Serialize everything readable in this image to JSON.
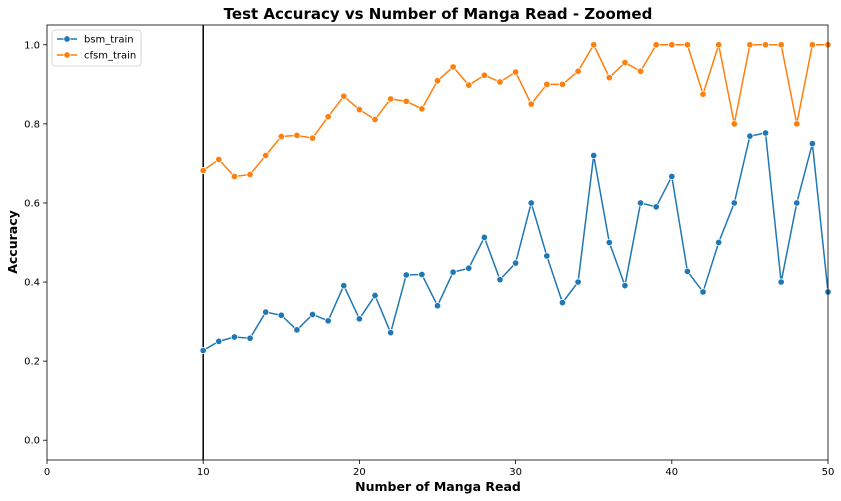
{
  "chart_data": {
    "type": "line",
    "title": "Test Accuracy vs Number of Manga Read - Zoomed",
    "xlabel": "Number of Manga Read",
    "ylabel": "Accuracy",
    "xlim": [
      0,
      50
    ],
    "ylim": [
      -0.05,
      1.05
    ],
    "xticks": [
      0,
      10,
      20,
      30,
      40,
      50
    ],
    "yticks": [
      0.0,
      0.2,
      0.4,
      0.6,
      0.8,
      1.0
    ],
    "xtick_labels": [
      "0",
      "10",
      "20",
      "30",
      "40",
      "50"
    ],
    "ytick_labels": [
      "0.0",
      "0.2",
      "0.4",
      "0.6",
      "0.8",
      "1.0"
    ],
    "vline_x": 10,
    "grid": false,
    "legend_position": "top-left",
    "x": [
      10,
      11,
      12,
      13,
      14,
      15,
      16,
      17,
      18,
      19,
      20,
      21,
      22,
      23,
      24,
      25,
      26,
      27,
      28,
      29,
      30,
      31,
      32,
      33,
      34,
      35,
      36,
      37,
      38,
      39,
      40,
      41,
      42,
      43,
      44,
      45,
      46,
      47,
      48,
      49,
      50
    ],
    "series": [
      {
        "name": "bsm_train",
        "color": "#1f77b4",
        "marker": "circle",
        "values": [
          0.227,
          0.25,
          0.261,
          0.258,
          0.324,
          0.316,
          0.279,
          0.318,
          0.302,
          0.391,
          0.307,
          0.366,
          0.272,
          0.418,
          0.419,
          0.34,
          0.425,
          0.435,
          0.513,
          0.406,
          0.448,
          0.6,
          0.466,
          0.348,
          0.4,
          0.72,
          0.5,
          0.391,
          0.6,
          0.59,
          0.667,
          0.427,
          0.375,
          0.5,
          0.6,
          0.769,
          0.777,
          0.4,
          0.6,
          0.75,
          0.375
        ]
      },
      {
        "name": "cfsm_train",
        "color": "#ff7f0e",
        "marker": "circle",
        "values": [
          0.682,
          0.71,
          0.667,
          0.672,
          0.72,
          0.768,
          0.771,
          0.764,
          0.818,
          0.87,
          0.836,
          0.811,
          0.863,
          0.857,
          0.838,
          0.909,
          0.944,
          0.898,
          0.923,
          0.906,
          0.931,
          0.85,
          0.9,
          0.9,
          0.933,
          1.0,
          0.917,
          0.955,
          0.933,
          1.0,
          1.0,
          1.0,
          0.875,
          1.0,
          0.8,
          1.0,
          1.0,
          1.0,
          0.8,
          1.0,
          1.0
        ]
      }
    ]
  }
}
